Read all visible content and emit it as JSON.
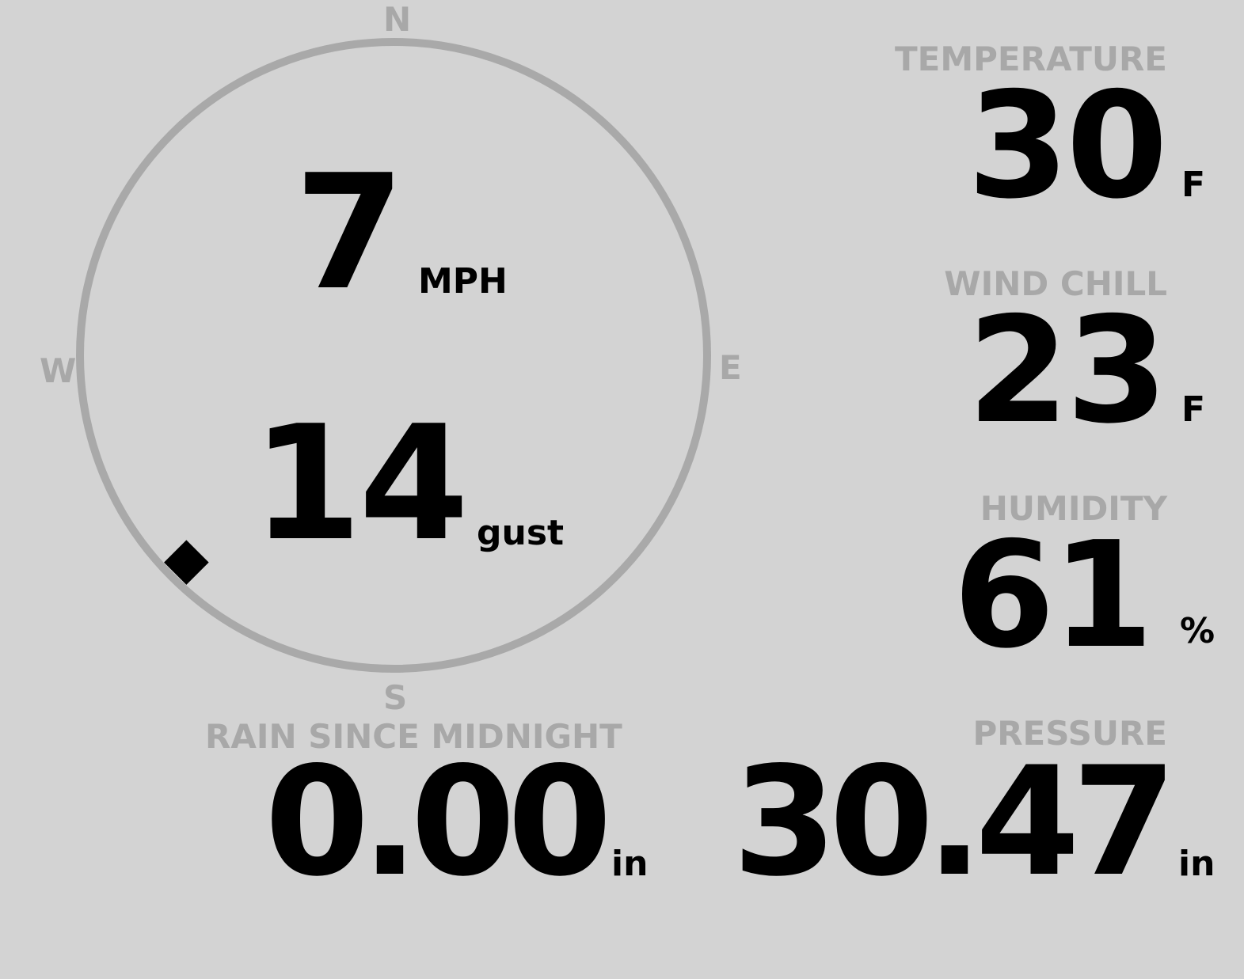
{
  "wind": {
    "speed": "7",
    "speed_unit": "MPH",
    "gust": "14",
    "gust_unit": "gust",
    "direction_deg": 225,
    "compass": {
      "n": "N",
      "e": "E",
      "s": "S",
      "w": "W"
    },
    "ring_color": "#a9a9a9"
  },
  "temperature": {
    "label": "TEMPERATURE",
    "value": "30",
    "unit": "F"
  },
  "wind_chill": {
    "label": "WIND CHILL",
    "value": "23",
    "unit": "F"
  },
  "humidity": {
    "label": "HUMIDITY",
    "value": "61",
    "unit": "%"
  },
  "rain": {
    "label": "RAIN SINCE MIDNIGHT",
    "value": "0.00",
    "unit": "in"
  },
  "pressure": {
    "label": "PRESSURE",
    "value": "30.47",
    "unit": "in"
  }
}
